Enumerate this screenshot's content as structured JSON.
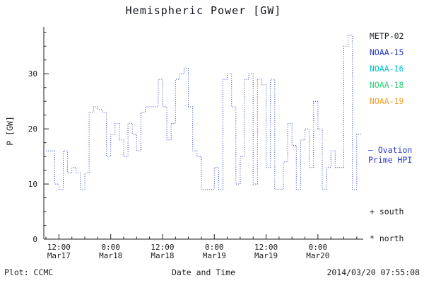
{
  "title": "Hemispheric Power [GW]",
  "footer": {
    "plot_credit": "Plot: CCMC",
    "timestamp": "2014/03/20 07:55:08"
  },
  "legend": {
    "satellites": [
      {
        "label": "METP-02",
        "color": "#22262b"
      },
      {
        "label": "NOAA-15",
        "color": "#2838cc"
      },
      {
        "label": "NOAA-16",
        "color": "#00c2cc"
      },
      {
        "label": "NOAA-18",
        "color": "#2fcf7a"
      },
      {
        "label": "NOAA-19",
        "color": "#ff9d26"
      }
    ],
    "ovation": {
      "line1": "— Ovation",
      "line2": "Prime HPI",
      "color": "#2838cc"
    },
    "markers": {
      "south": "+ south",
      "north": "* north"
    }
  },
  "chart_data": {
    "type": "line",
    "style": "step-dotted",
    "title": "Hemispheric Power [GW]",
    "xlabel": "Date and Time",
    "ylabel": "P [GW]",
    "line_color": "#2838cc",
    "xlim_hours": [
      8.5,
      82.5
    ],
    "ylim": [
      0,
      38.5
    ],
    "yticks": [
      0,
      10,
      20,
      30
    ],
    "y_minor_step": 2.5,
    "x_minor_step_hours": 3,
    "xticks": [
      {
        "hour": 12,
        "time": "12:00",
        "date": "Mar17"
      },
      {
        "hour": 24,
        "time": "0:00",
        "date": "Mar18"
      },
      {
        "hour": 36,
        "time": "12:00",
        "date": "Mar18"
      },
      {
        "hour": 48,
        "time": "0:00",
        "date": "Mar19"
      },
      {
        "hour": 60,
        "time": "12:00",
        "date": "Mar19"
      },
      {
        "hour": 72,
        "time": "0:00",
        "date": "Mar20"
      }
    ],
    "x_start_hour": 9,
    "step_hours": 1,
    "values": [
      16,
      16,
      10,
      9,
      16,
      12,
      13,
      12,
      9,
      12,
      23,
      24,
      23.5,
      23,
      15,
      19,
      21,
      18,
      15,
      21,
      19,
      16,
      23,
      24,
      24,
      24,
      29,
      24,
      18,
      21,
      29,
      30,
      31,
      24,
      16,
      15,
      9,
      9,
      9,
      13,
      9,
      29,
      30,
      24,
      10,
      15,
      29,
      30,
      10,
      29,
      28,
      13,
      29,
      9,
      9,
      14,
      21,
      17,
      9,
      18,
      20,
      13,
      25,
      20,
      9,
      13,
      16,
      13,
      13,
      35,
      37,
      9,
      19
    ]
  }
}
